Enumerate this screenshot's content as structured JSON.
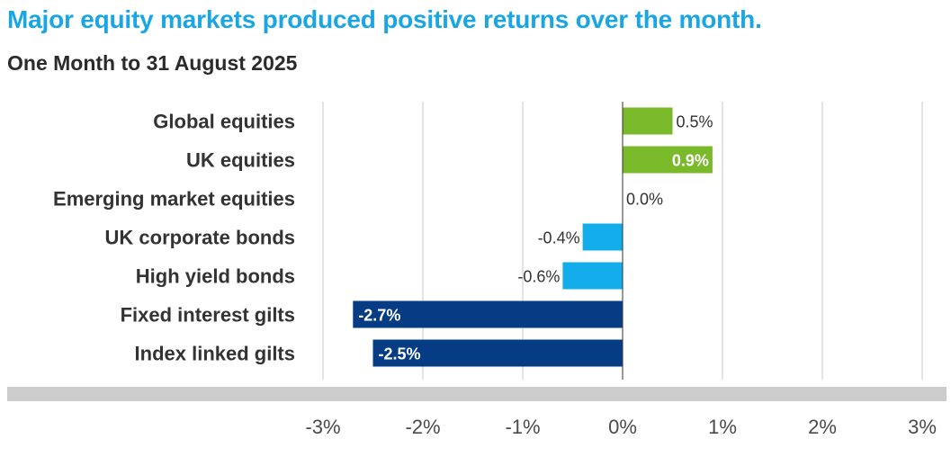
{
  "header": {
    "title": "Major equity markets produced positive returns over the month.",
    "subtitle": "One Month to 31 August 2025"
  },
  "colors": {
    "title": "#1aa6e4",
    "positive": "#7ab929",
    "negative_bonds": "#12adea",
    "negative_gilts": "#053c84",
    "gridline": "#c9c9c9",
    "axis_band": "#cccccc"
  },
  "chart_data": {
    "type": "bar",
    "orientation": "horizontal",
    "title": "Major equity markets produced positive returns over the month.",
    "subtitle": "One Month to 31 August 2025",
    "categories": [
      "Global equities",
      "UK equities",
      "Emerging market equities",
      "UK corporate bonds",
      "High yield bonds",
      "Fixed interest gilts",
      "Index linked gilts"
    ],
    "values": [
      0.5,
      0.9,
      0.0,
      -0.4,
      -0.6,
      -2.7,
      -2.5
    ],
    "value_labels": [
      "0.5%",
      "0.9%",
      "0.0%",
      "-0.4%",
      "-0.6%",
      "-2.7%",
      "-2.5%"
    ],
    "bar_colors": [
      "#7ab929",
      "#7ab929",
      "#7ab929",
      "#12adea",
      "#12adea",
      "#053c84",
      "#053c84"
    ],
    "label_inside": [
      false,
      true,
      false,
      false,
      false,
      true,
      true
    ],
    "xlim": [
      -3,
      3
    ],
    "xticks": [
      -3,
      -2,
      -1,
      0,
      1,
      2,
      3
    ],
    "xtick_labels": [
      "-3%",
      "-2%",
      "-1%",
      "0%",
      "1%",
      "2%",
      "3%"
    ],
    "grid": true
  }
}
